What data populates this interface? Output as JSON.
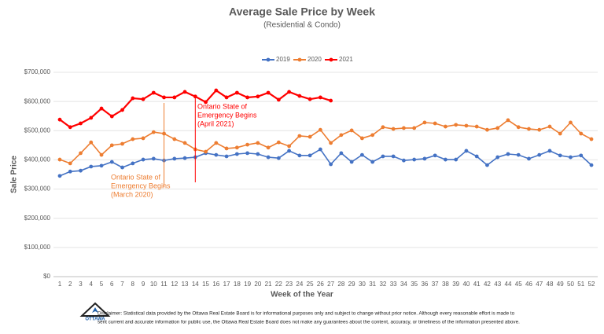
{
  "chart_data": {
    "type": "line",
    "title": "Average Sale Price by Week",
    "subtitle": "(Residential & Condo)",
    "x_label": "Week of the Year",
    "y_label": "Sale Price",
    "legend": "top",
    "grid": true,
    "categories": [
      1,
      2,
      3,
      4,
      5,
      6,
      7,
      8,
      9,
      10,
      11,
      12,
      13,
      14,
      15,
      16,
      17,
      18,
      19,
      20,
      21,
      22,
      23,
      24,
      25,
      26,
      27,
      28,
      29,
      30,
      31,
      32,
      33,
      34,
      35,
      36,
      37,
      38,
      39,
      40,
      41,
      42,
      43,
      44,
      45,
      46,
      47,
      48,
      49,
      50,
      51,
      52
    ],
    "ylim": [
      0,
      700000
    ],
    "yticks": [
      {
        "value": 0,
        "label": "$0"
      },
      {
        "value": 100000,
        "label": "$100,000"
      },
      {
        "value": 200000,
        "label": "$200,000"
      },
      {
        "value": 300000,
        "label": "$300,000"
      },
      {
        "value": 400000,
        "label": "$400,000"
      },
      {
        "value": 500000,
        "label": "$500,000"
      },
      {
        "value": 600000,
        "label": "$600,000"
      },
      {
        "value": 700000,
        "label": "$700,000"
      }
    ],
    "series": [
      {
        "name": "2019",
        "color": "#4472c4",
        "values": [
          345000,
          360000,
          363000,
          377000,
          380000,
          393000,
          374000,
          388000,
          401000,
          404000,
          398000,
          404000,
          406000,
          409000,
          423000,
          417000,
          412000,
          420000,
          423000,
          420000,
          409000,
          406000,
          431000,
          415000,
          415000,
          436000,
          385000,
          423000,
          393000,
          417000,
          393000,
          412000,
          412000,
          398000,
          401000,
          404000,
          415000,
          401000,
          401000,
          431000,
          412000,
          382000,
          409000,
          420000,
          417000,
          404000,
          417000,
          431000,
          415000,
          409000,
          415000,
          382000
        ]
      },
      {
        "name": "2020",
        "color": "#ed7d31",
        "values": [
          401000,
          388000,
          423000,
          460000,
          417000,
          450000,
          455000,
          471000,
          474000,
          495000,
          490000,
          471000,
          458000,
          436000,
          428000,
          458000,
          439000,
          442000,
          452000,
          458000,
          442000,
          460000,
          447000,
          482000,
          479000,
          503000,
          458000,
          485000,
          501000,
          474000,
          485000,
          512000,
          506000,
          509000,
          509000,
          528000,
          525000,
          514000,
          520000,
          517000,
          514000,
          503000,
          509000,
          536000,
          512000,
          506000,
          503000,
          514000,
          490000,
          528000,
          490000,
          471000
        ]
      },
      {
        "name": "2021",
        "color": "#ff0000",
        "values": [
          538000,
          512000,
          525000,
          544000,
          576000,
          549000,
          571000,
          611000,
          608000,
          630000,
          614000,
          614000,
          633000,
          617000,
          598000,
          638000,
          614000,
          630000,
          614000,
          617000,
          630000,
          606000,
          633000,
          619000,
          608000,
          614000,
          603000,
          null,
          null,
          null,
          null,
          null,
          null,
          null,
          null,
          null,
          null,
          null,
          null,
          null,
          null,
          null,
          null,
          null,
          null,
          null,
          null,
          null,
          null,
          null,
          null,
          null
        ]
      }
    ],
    "annotations": [
      {
        "x": 11,
        "color": "#ed7d31",
        "text": [
          "Ontario State of",
          "Emergency Begins",
          "(March 2020)"
        ]
      },
      {
        "x": 14,
        "color": "#ff0000",
        "text": [
          "Ontario State of",
          "Emergency Begins",
          "(April 2021)"
        ]
      }
    ]
  },
  "footer": {
    "logo_text": "OTTAWA",
    "disclaimer": [
      "Disclaimer: Statistical data provided by the Ottawa Real Estate Board is for informational purposes only and subject to change without prior notice. Although every reasonable effort is made to",
      "sent current and accurate information for public use, the Ottawa Real Estate Board does not make any guarantees about the content, accuracy, or timeliness of the information presented above."
    ]
  }
}
